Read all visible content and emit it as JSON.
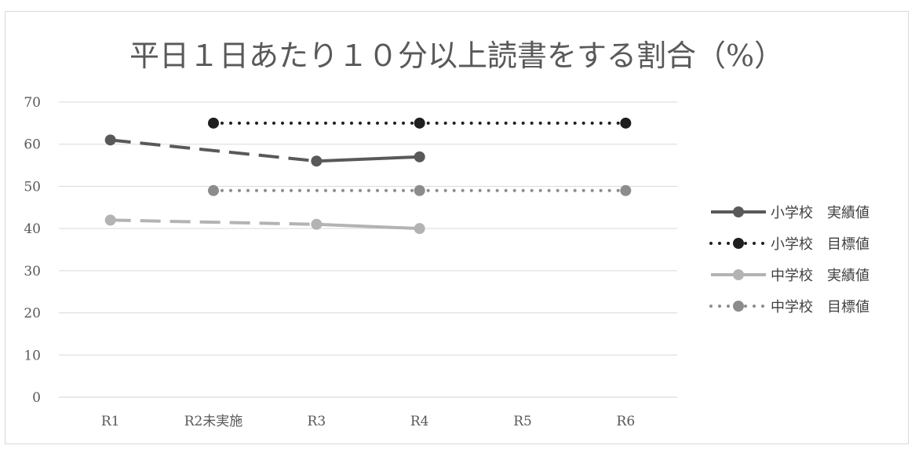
{
  "chart_data": {
    "type": "line",
    "title": "平日１日あたり１０分以上読書をする割合（%）",
    "categories": [
      "R1",
      "R2未実施",
      "R3",
      "R4",
      "R5",
      "R6"
    ],
    "ylim": [
      0,
      70
    ],
    "yticks": [
      "0",
      "10",
      "20",
      "30",
      "40",
      "50",
      "60",
      "70"
    ],
    "grid": true,
    "legend_position": "right",
    "series": [
      {
        "name": "小学校　実績値",
        "values": [
          61,
          null,
          56,
          57,
          null,
          null
        ],
        "style": "solid-with-dashed-gap",
        "color": "#595959"
      },
      {
        "name": "小学校　目標値",
        "values": [
          null,
          65,
          null,
          65,
          null,
          65
        ],
        "style": "dotted",
        "color": "#1f1f1f"
      },
      {
        "name": "中学校　実績値",
        "values": [
          42,
          null,
          41,
          40,
          null,
          null
        ],
        "style": "solid-with-dashed-gap",
        "color": "#b3b3b3"
      },
      {
        "name": "中学校　目標値",
        "values": [
          null,
          49,
          null,
          49,
          null,
          49
        ],
        "style": "dotted",
        "color": "#8c8c8c"
      }
    ]
  }
}
